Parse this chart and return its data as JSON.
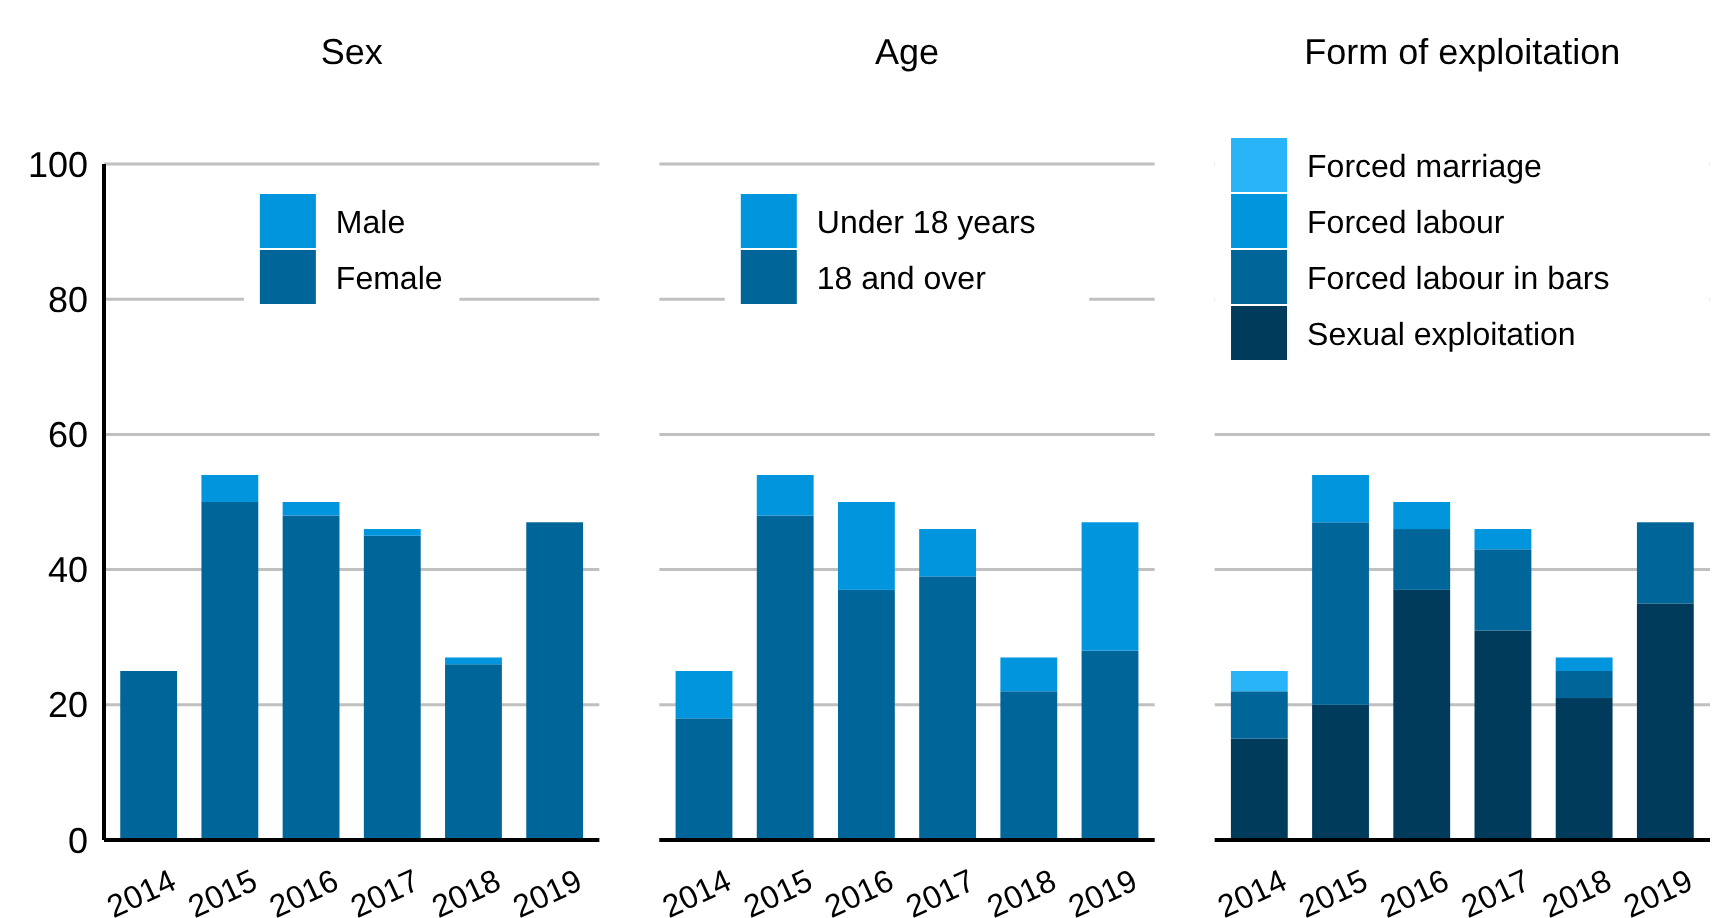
{
  "chart_data": [
    {
      "type": "bar",
      "title": "Sex",
      "categories": [
        "2014",
        "2015",
        "2016",
        "2017",
        "2018",
        "2019"
      ],
      "stacked": true,
      "ylim": [
        0,
        100
      ],
      "yticks": [
        0,
        20,
        40,
        60,
        80,
        100
      ],
      "grid": "y",
      "legend": "top",
      "series": [
        {
          "name": "Female",
          "color": "#006699",
          "values": [
            25,
            50,
            48,
            45,
            26,
            47
          ]
        },
        {
          "name": "Male",
          "color": "#0095dd",
          "values": [
            0,
            4,
            2,
            1,
            1,
            0
          ]
        }
      ]
    },
    {
      "type": "bar",
      "title": "Age",
      "categories": [
        "2014",
        "2015",
        "2016",
        "2017",
        "2018",
        "2019"
      ],
      "stacked": true,
      "ylim": [
        0,
        100
      ],
      "yticks": [
        0,
        20,
        40,
        60,
        80,
        100
      ],
      "grid": "y",
      "legend": "top",
      "tick_labels": "x",
      "series": [
        {
          "name": "18 and over",
          "color": "#006699",
          "values": [
            18,
            48,
            37,
            39,
            22,
            28
          ]
        },
        {
          "name": "Under 18 years",
          "color": "#0095dd",
          "values": [
            7,
            6,
            13,
            7,
            5,
            19
          ]
        }
      ]
    },
    {
      "type": "bar",
      "title": "Form of exploitation",
      "categories": [
        "2014",
        "2015",
        "2016",
        "2017",
        "2018",
        "2019"
      ],
      "stacked": true,
      "ylim": [
        0,
        100
      ],
      "yticks": [
        0,
        20,
        40,
        60,
        80,
        100
      ],
      "grid": "y",
      "legend": "top",
      "tick_labels": "x",
      "series": [
        {
          "name": "Sexual exploitation",
          "color": "#003b5c",
          "values": [
            15,
            20,
            37,
            31,
            21,
            35
          ]
        },
        {
          "name": "Forced labour in bars",
          "color": "#006699",
          "values": [
            7,
            27,
            9,
            12,
            4,
            12
          ]
        },
        {
          "name": "Forced labour",
          "color": "#0095dd",
          "values": [
            0,
            7,
            4,
            3,
            2,
            0
          ]
        },
        {
          "name": "Forced marriage",
          "color": "#2ab4f8",
          "values": [
            3,
            0,
            0,
            0,
            0,
            0
          ]
        }
      ]
    }
  ]
}
